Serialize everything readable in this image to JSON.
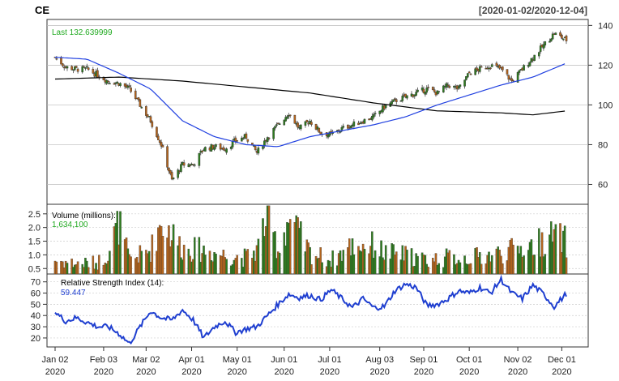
{
  "header": {
    "symbol": "CE",
    "date_range": "[2020-01-02/2020-12-04]"
  },
  "price_panel": {
    "last_label": "Last 132.639999",
    "colors": {
      "up": "#2e7d1f",
      "down": "#b5651d",
      "sma_short": "#1f3fe0",
      "sma_long": "#000000",
      "text": "#22aa22"
    },
    "y_ticks": [
      "60",
      "80",
      "100",
      "120",
      "140"
    ],
    "ylim": [
      50,
      143
    ]
  },
  "volume_panel": {
    "title": "Volume (millions):",
    "last_value": "1,634,100",
    "y_ticks": [
      "0.5",
      "1.0",
      "1.5",
      "2.0",
      "2.5"
    ],
    "ylim": [
      0.3,
      2.85
    ]
  },
  "rsi_panel": {
    "title": "Relative Strength Index (14):",
    "last_value": "59.447",
    "y_ticks": [
      "20",
      "30",
      "40",
      "50",
      "60",
      "70"
    ],
    "ylim": [
      12,
      77
    ],
    "color": "#1f3fd0"
  },
  "x_axis": {
    "labels": [
      {
        "month": "Jan 02",
        "year": "2020"
      },
      {
        "month": "Feb 03",
        "year": "2020"
      },
      {
        "month": "Mar 02",
        "year": "2020"
      },
      {
        "month": "Apr 01",
        "year": "2020"
      },
      {
        "month": "May 01",
        "year": "2020"
      },
      {
        "month": "Jun 01",
        "year": "2020"
      },
      {
        "month": "Jul 01",
        "year": "2020"
      },
      {
        "month": "Aug 03",
        "year": "2020"
      },
      {
        "month": "Sep 01",
        "year": "2020"
      },
      {
        "month": "Oct 01",
        "year": "2020"
      },
      {
        "month": "Nov 02",
        "year": "2020"
      },
      {
        "month": "Dec 01",
        "year": "2020"
      }
    ]
  },
  "chart_data": {
    "type": "line",
    "title": "CE",
    "x_type": "date",
    "x_range": [
      "2020-01-02",
      "2020-12-04"
    ],
    "close": [
      [
        "2020-01-02",
        124
      ],
      [
        "2020-01-09",
        119
      ],
      [
        "2020-01-16",
        118
      ],
      [
        "2020-01-23",
        118
      ],
      [
        "2020-01-30",
        115
      ],
      [
        "2020-02-06",
        112
      ],
      [
        "2020-02-13",
        111
      ],
      [
        "2020-02-20",
        108
      ],
      [
        "2020-02-27",
        100
      ],
      [
        "2020-03-05",
        92
      ],
      [
        "2020-03-12",
        80
      ],
      [
        "2020-03-19",
        62
      ],
      [
        "2020-03-26",
        70
      ],
      [
        "2020-04-02",
        70
      ],
      [
        "2020-04-09",
        78
      ],
      [
        "2020-04-16",
        79
      ],
      [
        "2020-04-23",
        78
      ],
      [
        "2020-04-30",
        82
      ],
      [
        "2020-05-07",
        84
      ],
      [
        "2020-05-14",
        76
      ],
      [
        "2020-05-21",
        84
      ],
      [
        "2020-05-28",
        90
      ],
      [
        "2020-06-04",
        96
      ],
      [
        "2020-06-11",
        88
      ],
      [
        "2020-06-18",
        92
      ],
      [
        "2020-06-25",
        86
      ],
      [
        "2020-07-02",
        85
      ],
      [
        "2020-07-09",
        88
      ],
      [
        "2020-07-16",
        90
      ],
      [
        "2020-07-23",
        92
      ],
      [
        "2020-07-30",
        94
      ],
      [
        "2020-08-06",
        99
      ],
      [
        "2020-08-13",
        102
      ],
      [
        "2020-08-20",
        104
      ],
      [
        "2020-08-27",
        106
      ],
      [
        "2020-09-03",
        108
      ],
      [
        "2020-09-10",
        106
      ],
      [
        "2020-09-17",
        110
      ],
      [
        "2020-09-24",
        108
      ],
      [
        "2020-10-01",
        116
      ],
      [
        "2020-10-08",
        118
      ],
      [
        "2020-10-15",
        120
      ],
      [
        "2020-10-22",
        118
      ],
      [
        "2020-10-29",
        112
      ],
      [
        "2020-11-05",
        118
      ],
      [
        "2020-11-12",
        124
      ],
      [
        "2020-11-19",
        130
      ],
      [
        "2020-11-26",
        136
      ],
      [
        "2020-12-04",
        132.64
      ]
    ],
    "sma_short": [
      [
        "2020-01-02",
        124
      ],
      [
        "2020-01-23",
        123
      ],
      [
        "2020-02-13",
        116
      ],
      [
        "2020-03-05",
        108
      ],
      [
        "2020-03-26",
        92
      ],
      [
        "2020-04-16",
        84
      ],
      [
        "2020-05-07",
        80
      ],
      [
        "2020-05-28",
        79
      ],
      [
        "2020-06-18",
        84
      ],
      [
        "2020-07-09",
        87
      ],
      [
        "2020-07-30",
        90
      ],
      [
        "2020-08-20",
        94
      ],
      [
        "2020-09-10",
        100
      ],
      [
        "2020-10-01",
        105
      ],
      [
        "2020-10-22",
        110
      ],
      [
        "2020-11-12",
        114
      ],
      [
        "2020-12-04",
        121
      ]
    ],
    "sma_long": [
      [
        "2020-01-02",
        113
      ],
      [
        "2020-02-13",
        114
      ],
      [
        "2020-03-26",
        112
      ],
      [
        "2020-05-07",
        109
      ],
      [
        "2020-06-18",
        106
      ],
      [
        "2020-07-30",
        101
      ],
      [
        "2020-09-10",
        97
      ],
      [
        "2020-10-22",
        96
      ],
      [
        "2020-11-12",
        95
      ],
      [
        "2020-12-04",
        97
      ]
    ],
    "volume_millions": [
      [
        "2020-01-02",
        0.9
      ],
      [
        "2020-01-16",
        0.75
      ],
      [
        "2020-01-30",
        0.8
      ],
      [
        "2020-02-06",
        1.2
      ],
      [
        "2020-02-13",
        2.4
      ],
      [
        "2020-02-20",
        0.9
      ],
      [
        "2020-03-05",
        1.3
      ],
      [
        "2020-03-12",
        2.5
      ],
      [
        "2020-03-26",
        1.4
      ],
      [
        "2020-04-09",
        1.3
      ],
      [
        "2020-04-23",
        1.1
      ],
      [
        "2020-05-07",
        1.0
      ],
      [
        "2020-05-14",
        1.3
      ],
      [
        "2020-05-21",
        2.8
      ],
      [
        "2020-05-28",
        1.3
      ],
      [
        "2020-06-04",
        2.6
      ],
      [
        "2020-06-18",
        1.2
      ],
      [
        "2020-07-02",
        0.9
      ],
      [
        "2020-07-16",
        1.5
      ],
      [
        "2020-07-30",
        1.5
      ],
      [
        "2020-08-06",
        1.2
      ],
      [
        "2020-08-20",
        1.1
      ],
      [
        "2020-09-03",
        0.9
      ],
      [
        "2020-09-17",
        1.0
      ],
      [
        "2020-10-01",
        1.0
      ],
      [
        "2020-10-15",
        1.1
      ],
      [
        "2020-10-29",
        1.3
      ],
      [
        "2020-11-12",
        1.5
      ],
      [
        "2020-11-26",
        1.9
      ],
      [
        "2020-12-04",
        1.63
      ]
    ],
    "rsi": [
      [
        "2020-01-02",
        43
      ],
      [
        "2020-01-09",
        35
      ],
      [
        "2020-01-16",
        38
      ],
      [
        "2020-01-23",
        34
      ],
      [
        "2020-01-30",
        30
      ],
      [
        "2020-02-06",
        30
      ],
      [
        "2020-02-13",
        24
      ],
      [
        "2020-02-20",
        15
      ],
      [
        "2020-02-27",
        30
      ],
      [
        "2020-03-05",
        44
      ],
      [
        "2020-03-12",
        38
      ],
      [
        "2020-03-19",
        36
      ],
      [
        "2020-03-26",
        45
      ],
      [
        "2020-04-02",
        36
      ],
      [
        "2020-04-09",
        20
      ],
      [
        "2020-04-16",
        30
      ],
      [
        "2020-04-23",
        35
      ],
      [
        "2020-04-30",
        25
      ],
      [
        "2020-05-07",
        28
      ],
      [
        "2020-05-14",
        30
      ],
      [
        "2020-05-21",
        40
      ],
      [
        "2020-05-28",
        50
      ],
      [
        "2020-06-04",
        59
      ],
      [
        "2020-06-11",
        56
      ],
      [
        "2020-06-18",
        58
      ],
      [
        "2020-06-25",
        54
      ],
      [
        "2020-07-02",
        63
      ],
      [
        "2020-07-09",
        55
      ],
      [
        "2020-07-16",
        47
      ],
      [
        "2020-07-23",
        55
      ],
      [
        "2020-07-30",
        47
      ],
      [
        "2020-08-06",
        48
      ],
      [
        "2020-08-13",
        62
      ],
      [
        "2020-08-20",
        68
      ],
      [
        "2020-08-27",
        65
      ],
      [
        "2020-09-03",
        49
      ],
      [
        "2020-09-10",
        50
      ],
      [
        "2020-09-17",
        55
      ],
      [
        "2020-09-24",
        62
      ],
      [
        "2020-10-01",
        60
      ],
      [
        "2020-10-08",
        65
      ],
      [
        "2020-10-15",
        60
      ],
      [
        "2020-10-22",
        72
      ],
      [
        "2020-10-29",
        60
      ],
      [
        "2020-11-05",
        55
      ],
      [
        "2020-11-12",
        67
      ],
      [
        "2020-11-19",
        59
      ],
      [
        "2020-11-26",
        48
      ],
      [
        "2020-12-04",
        59.45
      ]
    ]
  }
}
